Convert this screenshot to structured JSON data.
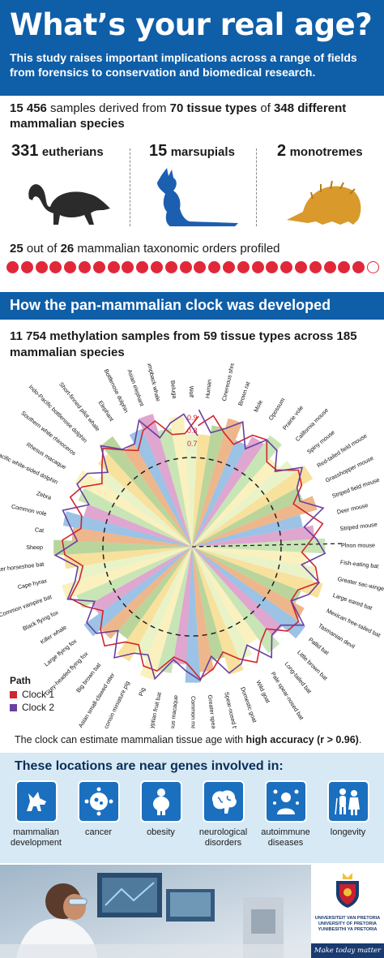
{
  "hero": {
    "title": "What’s your real age?",
    "subtitle": "This study raises important implications across a range of fields from forensics to conservation and biomedical research."
  },
  "samples": {
    "count": "15 456",
    "t1": " samples derived from ",
    "tissues": "70 tissue types",
    "t2": " of ",
    "species": "348 different mammalian species"
  },
  "groups": [
    {
      "count": "331",
      "label": "eutherians",
      "icon": "shrew-icon",
      "color": "#2b2b2b"
    },
    {
      "count": "15",
      "label": "marsupials",
      "icon": "kangaroo-icon",
      "color": "#1c5fb0"
    },
    {
      "count": "2",
      "label": "monotremes",
      "icon": "echidna-icon",
      "color": "#d99a2b"
    }
  ],
  "orders": {
    "profiled": "25",
    "t1": " out of ",
    "total": "26",
    "t2": " mammalian taxonomic orders profiled",
    "filled": 25,
    "count": 26
  },
  "band_title": "How the pan-mammalian clock was developed",
  "methylation": {
    "line": "11 754 methylation samples from 59 tissue types across 185 mammalian species"
  },
  "radial": {
    "ring_labels": [
      "0.9",
      "0.8",
      "0.7"
    ],
    "species": [
      "Human",
      "Cinereous shrew",
      "Brown rat",
      "Mole",
      "Opossum",
      "Prairie vole",
      "California mouse",
      "Spiny mouse",
      "Red-tailed field mouse",
      "Grasshopper mouse",
      "Striped field mouse",
      "Deer mouse",
      "Striped mouse",
      "Pinon mouse",
      "Fish-eating bat",
      "Greater sac-winged bat",
      "Large eared bat",
      "Mexican free-tailed bat",
      "Tasmanian devil",
      "Pallid bat",
      "Little brown bat",
      "Long-tailed bat",
      "Pale spear-nosed bat",
      "Wild goat",
      "Domestic goat",
      "Spear-nosed bat",
      "Greater spear-nosed bat",
      "Common marmoset",
      "Rhesus macaque",
      "Egyptian fruit bat",
      "Pig",
      "Wisconsin miniature pig",
      "Asian small-clawed otter",
      "Big brown bat",
      "Grey-headed flying fox",
      "Large flying fox",
      "Killer whale",
      "Black flying fox",
      "Common vampire bat",
      "Cape hyrax",
      "Greater horseshoe bat",
      "Sheep",
      "Cat",
      "Common vole",
      "Zebra",
      "Pacific white-sided dolphin",
      "Rhesus macaque",
      "Southern white rhinoceros",
      "Indo-Pacific bottlenose dolphin",
      "Short-finned pilot whale",
      "Elephant",
      "Bottlenose dolphin",
      "Asian elephant",
      "Humpback whale",
      "Beluga",
      "Wolf"
    ],
    "human_label": "Human",
    "colors": [
      "#f2c94c",
      "#7fb24a",
      "#e07b2b",
      "#4a8fd1",
      "#c45ca8",
      "#9bd07a",
      "#f6e68a",
      "#d8ea9a"
    ]
  },
  "legend": {
    "title": "Path",
    "clock1": "Clock 1",
    "clock2": "Clock 2",
    "clock1_color": "#d0262f",
    "clock2_color": "#6a3fa0"
  },
  "accuracy": {
    "t1": "The clock can estimate mammalian tissue age with ",
    "bold": "high accuracy (r > 0.96)",
    "t2": "."
  },
  "genes": {
    "title": "These locations are near genes involved in:",
    "items": [
      {
        "label": "mammalian development",
        "icon": "wolf-icon"
      },
      {
        "label": "cancer",
        "icon": "cell-icon"
      },
      {
        "label": "obesity",
        "icon": "person-icon"
      },
      {
        "label": "neurological disorders",
        "icon": "brain-icon"
      },
      {
        "label": "autoimmune diseases",
        "icon": "immune-person-icon"
      },
      {
        "label": "longevity",
        "icon": "elderly-couple-icon"
      }
    ]
  },
  "footer": {
    "university": "UNIVERSITEIT VAN PRETORIA\nUNIVERSITY OF PRETORIA\nYUNIBESITHI YA PRETORIA",
    "tagline": "Make today matter"
  },
  "theme": {
    "primary": "#0f5ea8",
    "accent_red": "#e0283a",
    "light_blue": "#d6e9f5"
  }
}
